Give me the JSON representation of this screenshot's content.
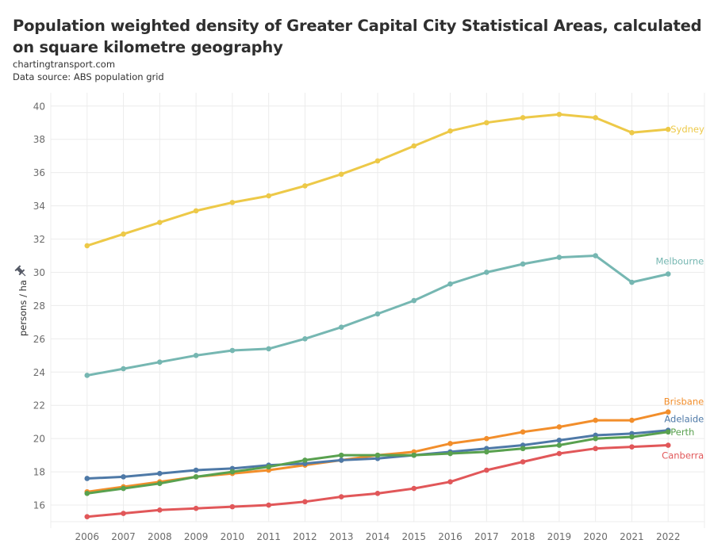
{
  "header": {
    "title": "Population weighted density of Greater Capital City Statistical Areas, calculated on square kilometre geography",
    "source_site": "chartingtransport.com",
    "data_source": "Data source: ABS population grid"
  },
  "chart_data": {
    "type": "line",
    "title": "Population weighted density of Greater Capital City Statistical Areas, calculated on square kilometre geography",
    "subtitle": "chartingtransport.com / Data source: ABS population grid",
    "xlabel": "",
    "ylabel": "persons / ha",
    "ylabel_icon": "pin-icon",
    "x": [
      2006,
      2007,
      2008,
      2009,
      2010,
      2011,
      2012,
      2013,
      2014,
      2015,
      2016,
      2017,
      2018,
      2019,
      2020,
      2021,
      2022
    ],
    "x_tick_labels": [
      "2006",
      "2007",
      "2008",
      "2009",
      "2010",
      "2011",
      "2012",
      "2013",
      "2014",
      "2015",
      "2016",
      "2017",
      "2018",
      "2019",
      "2020",
      "2021",
      "2022"
    ],
    "xlim": [
      2005,
      2023
    ],
    "ylim": [
      15.0,
      40.8
    ],
    "y_ticks": [
      16,
      18,
      20,
      22,
      24,
      26,
      28,
      30,
      32,
      34,
      36,
      38,
      40
    ],
    "grid": true,
    "legend": "direct labels at line ends (right)",
    "series": [
      {
        "name": "Sydney",
        "color": "#EDC948",
        "values": [
          31.6,
          32.3,
          33.0,
          33.7,
          34.2,
          34.6,
          35.2,
          35.9,
          36.7,
          37.6,
          38.5,
          39.0,
          39.3,
          39.5,
          39.3,
          38.4,
          38.6
        ]
      },
      {
        "name": "Melbourne",
        "color": "#76B7B2",
        "values": [
          23.8,
          24.2,
          24.6,
          25.0,
          25.3,
          25.4,
          26.0,
          26.7,
          27.5,
          28.3,
          29.3,
          30.0,
          30.5,
          30.9,
          31.0,
          29.4,
          29.9
        ]
      },
      {
        "name": "Brisbane",
        "color": "#F28E2B",
        "values": [
          16.8,
          17.1,
          17.4,
          17.7,
          17.9,
          18.1,
          18.4,
          18.7,
          19.0,
          19.2,
          19.7,
          20.0,
          20.4,
          20.7,
          21.1,
          21.1,
          21.6
        ]
      },
      {
        "name": "Adelaide",
        "color": "#4E79A7",
        "values": [
          17.6,
          17.7,
          17.9,
          18.1,
          18.2,
          18.4,
          18.5,
          18.7,
          18.8,
          19.0,
          19.2,
          19.4,
          19.6,
          19.9,
          20.2,
          20.3,
          20.5
        ]
      },
      {
        "name": "Perth",
        "color": "#59A14F",
        "values": [
          16.7,
          17.0,
          17.3,
          17.7,
          18.0,
          18.3,
          18.7,
          19.0,
          19.0,
          19.0,
          19.1,
          19.2,
          19.4,
          19.6,
          20.0,
          20.1,
          20.4
        ]
      },
      {
        "name": "Canberra",
        "color": "#E15759",
        "values": [
          15.3,
          15.5,
          15.7,
          15.8,
          15.9,
          16.0,
          16.2,
          16.5,
          16.7,
          17.0,
          17.4,
          18.1,
          18.6,
          19.1,
          19.4,
          19.5,
          19.6
        ]
      }
    ]
  }
}
